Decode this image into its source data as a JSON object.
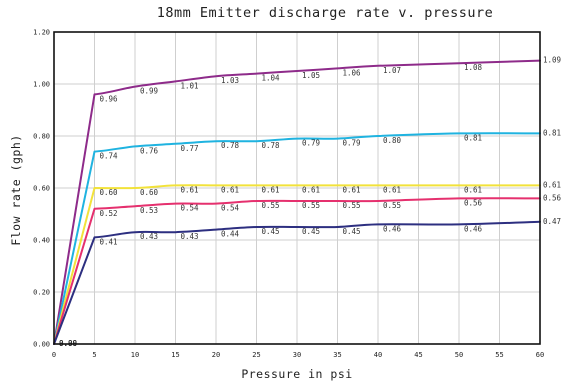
{
  "chart_data": {
    "type": "line",
    "title": "18mm Emitter discharge rate v. pressure",
    "xlabel": "Pressure in psi",
    "ylabel": "Flow rate (gph)",
    "xlim": [
      0,
      60
    ],
    "ylim": [
      0.0,
      1.2
    ],
    "x_ticks": [
      "0",
      "5",
      "10",
      "15",
      "20",
      "25",
      "30",
      "35",
      "40",
      "45",
      "50",
      "55",
      "60"
    ],
    "y_ticks": [
      "0.00",
      "0.20",
      "0.40",
      "0.60",
      "0.80",
      "1.00",
      "1.20"
    ],
    "grid": true,
    "x": [
      0,
      5,
      10,
      15,
      20,
      25,
      30,
      35,
      40,
      50,
      60
    ],
    "series": [
      {
        "color": "#8e2b8a",
        "values": [
          0.0,
          0.96,
          0.99,
          1.01,
          1.03,
          1.04,
          1.05,
          1.06,
          1.07,
          1.08,
          1.09
        ],
        "labels": [
          "0.00",
          "0.96",
          "0.99",
          "1.01",
          "1.03",
          "1.04",
          "1.05",
          "1.06",
          "1.07",
          "1.08",
          "1.09"
        ]
      },
      {
        "color": "#1fb3e0",
        "values": [
          0.0,
          0.74,
          0.76,
          0.77,
          0.78,
          0.78,
          0.79,
          0.79,
          0.8,
          0.81,
          0.81
        ],
        "labels": [
          "0.00",
          "0.74",
          "0.76",
          "0.77",
          "0.78",
          "0.78",
          "0.79",
          "0.79",
          "0.80",
          "0.81",
          "0.81"
        ]
      },
      {
        "color": "#f2e23a",
        "values": [
          0.0,
          0.6,
          0.6,
          0.61,
          0.61,
          0.61,
          0.61,
          0.61,
          0.61,
          0.61,
          0.61
        ],
        "labels": [
          "0.00",
          "0.60",
          "0.60",
          "0.61",
          "0.61",
          "0.61",
          "0.61",
          "0.61",
          "0.61",
          "0.61",
          "0.61"
        ]
      },
      {
        "color": "#e5306e",
        "values": [
          0.0,
          0.52,
          0.53,
          0.54,
          0.54,
          0.55,
          0.55,
          0.55,
          0.55,
          0.56,
          0.56
        ],
        "labels": [
          "0.00",
          "0.52",
          "0.53",
          "0.54",
          "0.54",
          "0.55",
          "0.55",
          "0.55",
          "0.55",
          "0.56",
          "0.56"
        ]
      },
      {
        "color": "#2d2f80",
        "values": [
          0.0,
          0.41,
          0.43,
          0.43,
          0.44,
          0.45,
          0.45,
          0.45,
          0.46,
          0.46,
          0.47
        ],
        "labels": [
          "0.00",
          "0.41",
          "0.43",
          "0.43",
          "0.44",
          "0.45",
          "0.45",
          "0.45",
          "0.46",
          "0.46",
          "0.47"
        ]
      }
    ]
  }
}
